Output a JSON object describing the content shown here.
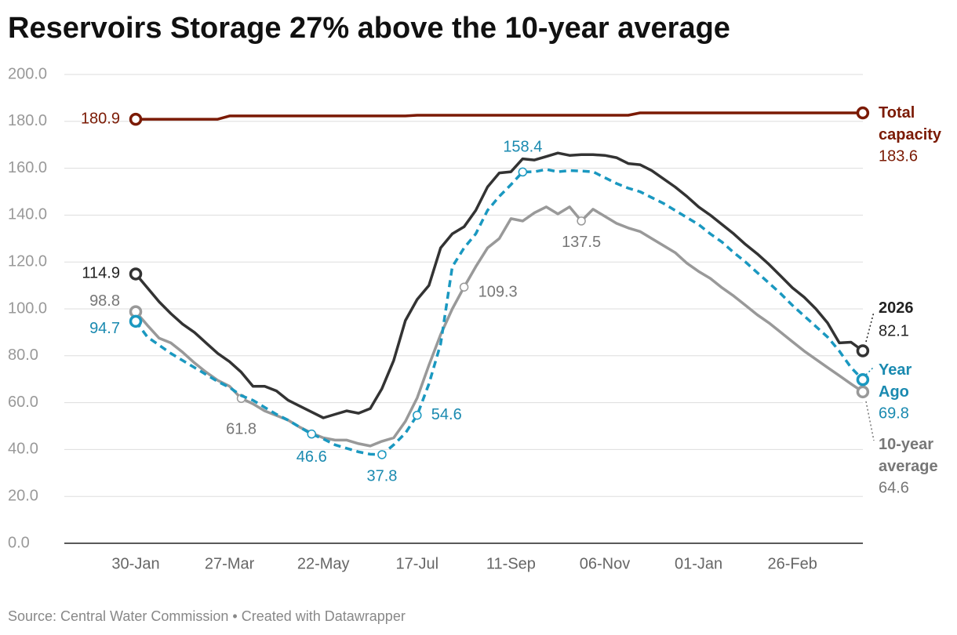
{
  "chart_data": {
    "type": "line",
    "title": "Reservoirs Storage 27% above the 10-year average",
    "source": "Source: Central Water Commission • Created with Datawrapper",
    "categories": [
      "30-Jan",
      null,
      null,
      null,
      null,
      null,
      null,
      null,
      "27-Mar",
      null,
      null,
      null,
      null,
      null,
      null,
      null,
      "22-May",
      null,
      null,
      null,
      null,
      null,
      null,
      null,
      "17-Jul",
      null,
      null,
      null,
      null,
      null,
      null,
      null,
      "11-Sep",
      null,
      null,
      null,
      null,
      null,
      null,
      null,
      "06-Nov",
      null,
      null,
      null,
      null,
      null,
      null,
      null,
      "01-Jan",
      null,
      null,
      null,
      null,
      null,
      null,
      null,
      "26-Feb",
      null,
      null,
      null,
      null,
      null,
      null
    ],
    "ylim": [
      0,
      200
    ],
    "yticks": [
      {
        "value": 0,
        "label": "0.0"
      },
      {
        "value": 20,
        "label": "20.0"
      },
      {
        "value": 40,
        "label": "40.0"
      },
      {
        "value": 60,
        "label": "60.0"
      },
      {
        "value": 80,
        "label": "80.0"
      },
      {
        "value": 100,
        "label": "100.0"
      },
      {
        "value": 120,
        "label": "120.0"
      },
      {
        "value": 140,
        "label": "140.0"
      },
      {
        "value": 160,
        "label": "160.0"
      },
      {
        "value": 180,
        "label": "180.0"
      },
      {
        "value": 200,
        "label": "200.0"
      }
    ],
    "grid": true,
    "series": [
      {
        "name": "Total capacity",
        "color": "#7b1a04",
        "dash": false,
        "values": [
          180.9,
          180.9,
          180.9,
          180.9,
          180.9,
          180.9,
          180.9,
          180.9,
          182.3,
          182.3,
          182.3,
          182.3,
          182.3,
          182.3,
          182.3,
          182.3,
          182.3,
          182.3,
          182.3,
          182.3,
          182.3,
          182.3,
          182.3,
          182.3,
          182.6,
          182.6,
          182.6,
          182.6,
          182.6,
          182.6,
          182.6,
          182.6,
          182.6,
          182.6,
          182.6,
          182.6,
          182.6,
          182.6,
          182.6,
          182.6,
          182.6,
          182.6,
          182.6,
          183.6,
          183.6,
          183.6,
          183.6,
          183.6,
          183.6,
          183.6,
          183.6,
          183.6,
          183.6,
          183.6,
          183.6,
          183.6,
          183.6,
          183.6,
          183.6,
          183.6,
          183.6,
          183.6,
          183.6
        ]
      },
      {
        "name": "10-year average",
        "color": "#999999",
        "dash": false,
        "values": [
          98.8,
          93,
          87.5,
          85.5,
          81.5,
          77,
          73,
          69.5,
          67,
          61.8,
          59.5,
          56.5,
          54.5,
          52.5,
          49.5,
          47,
          45,
          44,
          44,
          42.5,
          41.5,
          43.5,
          45,
          52,
          62,
          76,
          89,
          100,
          109.3,
          118,
          126,
          130,
          138.5,
          137.5,
          141,
          143.5,
          140.5,
          143.5,
          137.5,
          142.5,
          139.5,
          136.5,
          134.5,
          133,
          130,
          127,
          124,
          119.5,
          116,
          113,
          109,
          105.5,
          101.5,
          97.5,
          94,
          90,
          86,
          82,
          78.5,
          75,
          71.5,
          68,
          64.6
        ]
      },
      {
        "name": "Year Ago",
        "color": "#1a98c0",
        "dash": true,
        "values": [
          94.7,
          88,
          84.5,
          81,
          78,
          75,
          72,
          69,
          66.5,
          63,
          61,
          58,
          55,
          52.5,
          49.5,
          46.6,
          44.5,
          42,
          40.5,
          39,
          38,
          37.8,
          42,
          47,
          54.6,
          68,
          85,
          118,
          126,
          132,
          142,
          148,
          153,
          158.4,
          158.5,
          159.5,
          158.5,
          159,
          158.8,
          158.5,
          156,
          153.5,
          151.5,
          150,
          147.5,
          145,
          142,
          139,
          136,
          132,
          128.5,
          124,
          120,
          115.5,
          111,
          106.5,
          101.5,
          97,
          92.5,
          88,
          82,
          75,
          69.8
        ]
      },
      {
        "name": "2026",
        "color": "#333333",
        "dash": false,
        "values": [
          114.9,
          109,
          103,
          98,
          93.5,
          90,
          85.5,
          81,
          77.5,
          73,
          67,
          67,
          65,
          61,
          58.5,
          56,
          53.5,
          55,
          56.5,
          55.5,
          57.5,
          66,
          78,
          95,
          104,
          110,
          126,
          132,
          135,
          142,
          152,
          158,
          158.5,
          164,
          163.5,
          165,
          166.5,
          165.5,
          165.8,
          165.8,
          165.5,
          164.5,
          162,
          161.5,
          159,
          155.5,
          152,
          148,
          143.5,
          140,
          136,
          132,
          127.5,
          123.5,
          119,
          114,
          109,
          105,
          100,
          94,
          85.5,
          85.8,
          82.1
        ]
      }
    ]
  }
}
